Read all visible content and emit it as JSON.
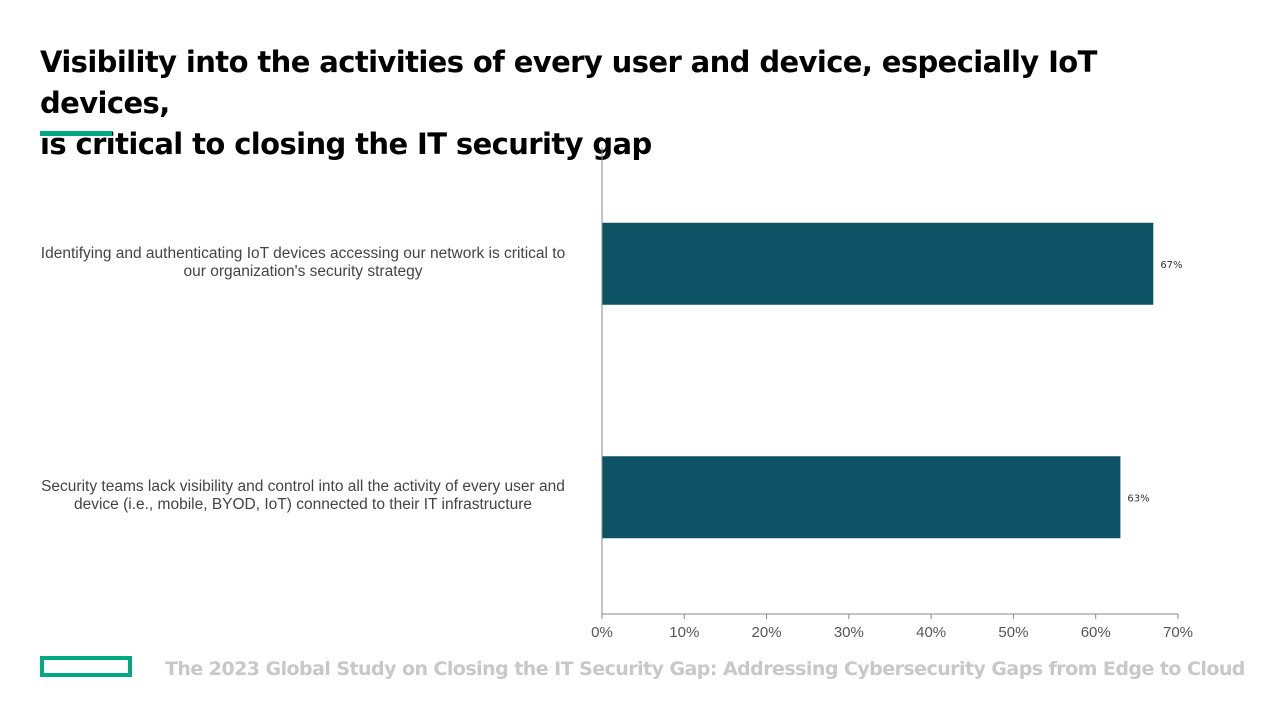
{
  "slide": {
    "title_lines": [
      "Visibility into the activities of every user and device, especially IoT devices,",
      "is critical to closing the IT security gap"
    ],
    "footer_text": "The 2023 Global Study on Closing the IT Security Gap: Addressing Cybersecurity Gaps from Edge to Cloud",
    "accent_color": "#01a982"
  },
  "chart_data": {
    "type": "bar",
    "orientation": "horizontal",
    "categories": [
      [
        "Identifying and authenticating IoT devices accessing our network is critical to",
        "our organization's security strategy"
      ],
      [
        "Security teams lack visibility and control into all the activity of every user and",
        "device (i.e., mobile, BYOD, IoT) connected to their IT infrastructure"
      ]
    ],
    "values": [
      67,
      63
    ],
    "value_labels": [
      "67%",
      "63%"
    ],
    "xlim": [
      0,
      70
    ],
    "ticks": [
      0,
      10,
      20,
      30,
      40,
      50,
      60,
      70
    ],
    "tick_labels": [
      "0%",
      "10%",
      "20%",
      "30%",
      "40%",
      "50%",
      "60%",
      "70%"
    ],
    "bar_color": "#0e5265",
    "grid": false,
    "legend": "none"
  }
}
